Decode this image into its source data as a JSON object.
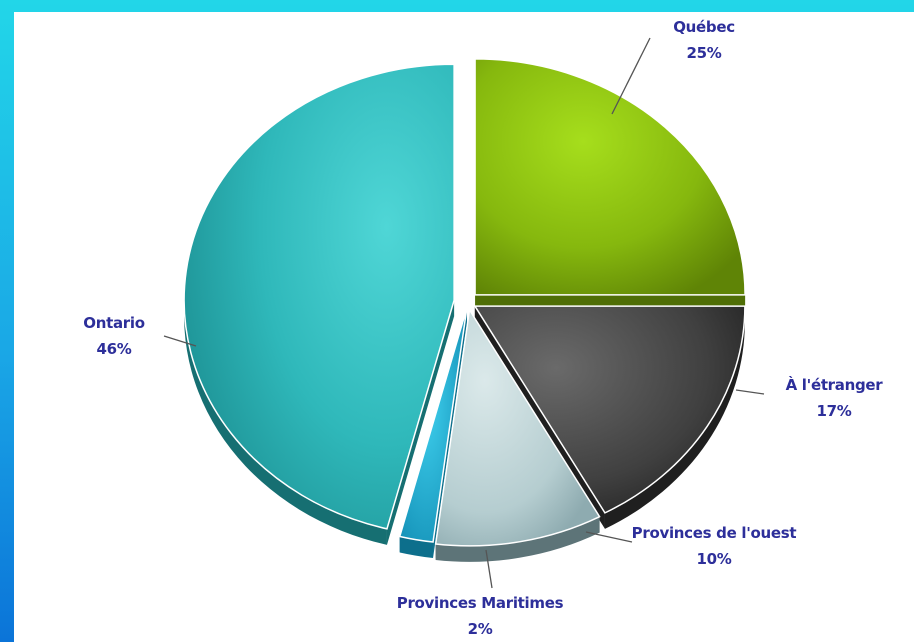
{
  "chart_data": {
    "type": "pie",
    "title": "",
    "categories": [
      "Québec",
      "À l'étranger",
      "Provinces de l'ouest",
      "Provinces Maritimes",
      "Ontario"
    ],
    "values": [
      25,
      17,
      10,
      2,
      46
    ],
    "labels": [
      {
        "name": "Québec",
        "value_text": "25%"
      },
      {
        "name": "À l'étranger",
        "value_text": "17%"
      },
      {
        "name": "Provinces de l'ouest",
        "value_text": "10%"
      },
      {
        "name": "Provinces Maritimes",
        "value_text": "2%"
      },
      {
        "name": "Ontario",
        "value_text": "46%"
      }
    ],
    "exploded": true,
    "three_d": true,
    "colors": [
      "#8cc20c",
      "#4a4a4a",
      "#b7cfd2",
      "#1fb2d6",
      "#34c2c4"
    ],
    "label_color": "#2d2f9a",
    "legend": "none"
  }
}
